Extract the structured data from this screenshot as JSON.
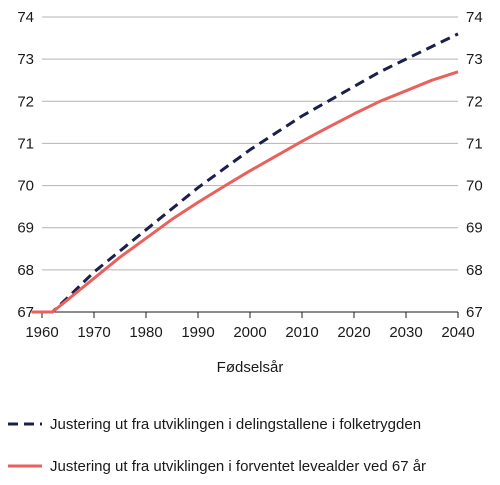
{
  "chart_data": {
    "type": "line",
    "title": "",
    "xlabel": "Fødselsår",
    "ylabel": "",
    "xlim": [
      1960,
      2040
    ],
    "ylim": [
      67,
      74
    ],
    "x_ticks": [
      1960,
      1970,
      1980,
      1990,
      2000,
      2010,
      2020,
      2030,
      2040
    ],
    "y_ticks": [
      67,
      68,
      69,
      70,
      71,
      72,
      73,
      74
    ],
    "grid": "horizontal",
    "legend_position": "bottom",
    "series": [
      {
        "name": "Justering ut fra utviklingen i delingstallene i folketrygden",
        "color": "#1b1f4b",
        "dash": "dashed",
        "x": [
          1958,
          1962,
          1965,
          1970,
          1975,
          1980,
          1985,
          1990,
          1995,
          2000,
          2005,
          2010,
          2015,
          2020,
          2025,
          2030,
          2035,
          2040
        ],
        "y": [
          67.0,
          67.0,
          67.35,
          67.95,
          68.45,
          68.95,
          69.45,
          69.95,
          70.4,
          70.85,
          71.25,
          71.65,
          72.0,
          72.35,
          72.7,
          73.0,
          73.3,
          73.6
        ]
      },
      {
        "name": "Justering ut fra utviklingen i forventet levealder ved 67 år",
        "color": "#e8615d",
        "dash": "solid",
        "x": [
          1958,
          1962,
          1965,
          1970,
          1975,
          1980,
          1985,
          1990,
          1995,
          2000,
          2005,
          2010,
          2015,
          2020,
          2025,
          2030,
          2035,
          2040
        ],
        "y": [
          67.0,
          67.0,
          67.3,
          67.8,
          68.3,
          68.75,
          69.2,
          69.6,
          69.98,
          70.35,
          70.7,
          71.05,
          71.38,
          71.7,
          72.0,
          72.25,
          72.5,
          72.7
        ]
      }
    ]
  }
}
